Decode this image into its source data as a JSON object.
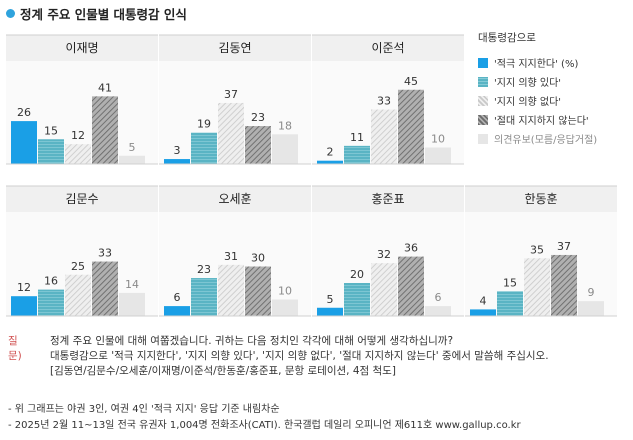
{
  "title": "정계 주요 인물별 대통령감 인식",
  "colors": {
    "accent": "#2fa3dd",
    "strong_support": "#1a9fe6",
    "some_support": "#5ab4c4",
    "no_support": "#d9d9d9",
    "strong_oppose": "#8c8c8c",
    "undecided": "#e6e6e6"
  },
  "legend": {
    "title": "대통령감으로",
    "items": [
      {
        "label": "'적극 지지한다' (%)",
        "style": "strong_support"
      },
      {
        "label": "'지지 의향 있다'",
        "style": "some_support"
      },
      {
        "label": "'지지 의향 없다'",
        "style": "no_support"
      },
      {
        "label": "'절대 지지하지 않는다'",
        "style": "strong_oppose"
      },
      {
        "label": "의견유보(모름/응답거절)",
        "style": "undecided"
      }
    ]
  },
  "chart_data": {
    "type": "bar",
    "title": "정계 주요 인물별 대통령감 인식",
    "categories": [
      "'적극 지지한다'",
      "'지지 의향 있다'",
      "'지지 의향 없다'",
      "'절대 지지하지 않는다'",
      "의견유보(모름/응답거절)"
    ],
    "unit": "%",
    "ylim": [
      0,
      50
    ],
    "panels": [
      {
        "name": "이재명",
        "values": [
          26,
          15,
          12,
          41,
          5
        ]
      },
      {
        "name": "김동연",
        "values": [
          3,
          19,
          37,
          23,
          18
        ]
      },
      {
        "name": "이준석",
        "values": [
          2,
          11,
          33,
          45,
          10
        ]
      },
      {
        "name": "김문수",
        "values": [
          12,
          16,
          25,
          33,
          14
        ]
      },
      {
        "name": "오세훈",
        "values": [
          6,
          23,
          31,
          30,
          10
        ]
      },
      {
        "name": "홍준표",
        "values": [
          5,
          20,
          32,
          36,
          6
        ]
      },
      {
        "name": "한동훈",
        "values": [
          4,
          15,
          35,
          37,
          9
        ]
      }
    ]
  },
  "question": {
    "label": "질문)",
    "lines": [
      "정계 주요 인물에 대해 여쭙겠습니다. 귀하는 다음 정치인 각각에 대해 어떻게 생각하십니까?",
      "대통령감으로 '적극 지지한다', '지지 의향 있다', '지지 의향 없다', '절대 지지하지 않는다' 중에서 말씀해 주십시오.",
      "[김동연/김문수/오세훈/이재명/이준석/한동훈/홍준표, 문항 로테이션, 4점 척도]"
    ]
  },
  "footnotes": [
    "- 위 그래프는 야권 3인, 여권 4인 '적극 지지' 응답 기준 내림차순",
    "- 2025년 2월 11~13일 전국 유권자 1,004명 전화조사(CATI). 한국갤럽 데일리 오피니언 제611호 www.gallup.co.kr"
  ]
}
